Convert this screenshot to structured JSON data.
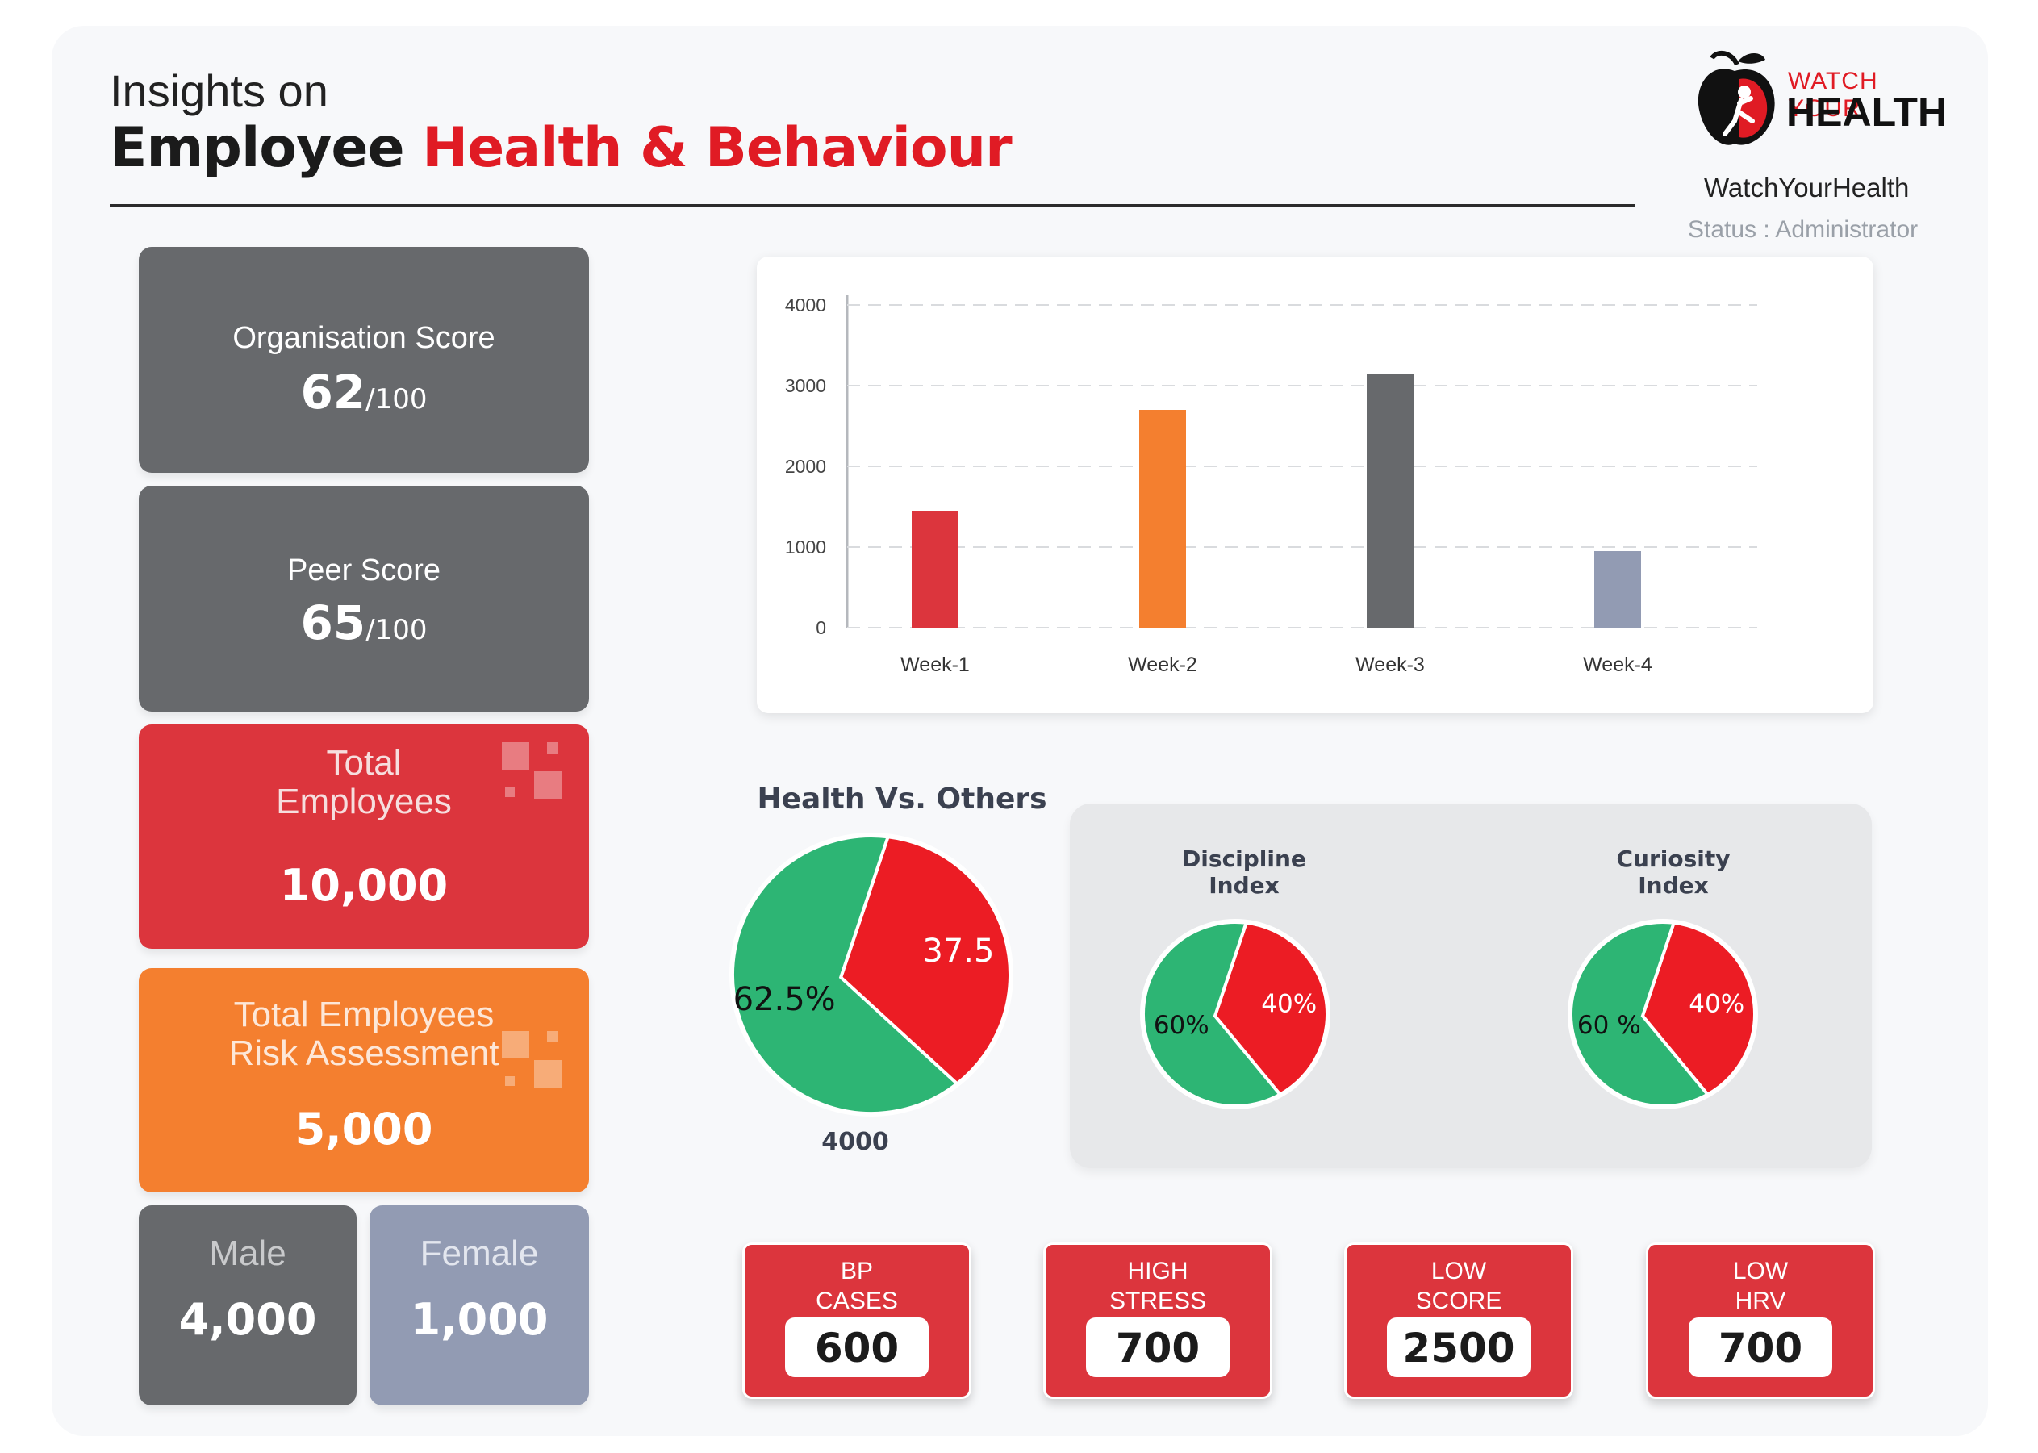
{
  "header": {
    "subtitle": "Insights on",
    "title_main": "Employee",
    "title_accent": "Health & Behaviour",
    "logo_top": "WATCH YOUR",
    "logo_bottom": "HEALTH",
    "brand": "WatchYourHealth",
    "status": "Status : Administrator"
  },
  "left": {
    "org": {
      "label": "Organisation Score",
      "value": "62",
      "suffix": "/100"
    },
    "peer": {
      "label": "Peer Score",
      "value": "65",
      "suffix": "/100"
    },
    "total": {
      "label_1": "Total",
      "label_2": "Employees",
      "value": "10,000"
    },
    "risk": {
      "label_1": "Total Employees",
      "label_2": "Risk Assessment",
      "value": "5,000"
    },
    "male": {
      "label": "Male",
      "value": "4,000"
    },
    "female": {
      "label": "Female",
      "value": "1,000"
    }
  },
  "colors": {
    "red": "#dc353d",
    "orange": "#f47f2f",
    "grey": "#67696c",
    "slate": "#929bb3",
    "green": "#2db574",
    "pie_red": "#ec1c24"
  },
  "chart_data": [
    {
      "type": "bar",
      "categories": [
        "Week-1",
        "Week-2",
        "Week-3",
        "Week-4"
      ],
      "values": [
        1450,
        2700,
        3150,
        950
      ],
      "colors": [
        "#dc353d",
        "#f47f2f",
        "#67696c",
        "#929bb3"
      ],
      "yticks": [
        "0",
        "1000",
        "2000",
        "3000",
        "4000"
      ],
      "ylim": [
        0,
        4000
      ],
      "grid": true
    },
    {
      "type": "pie",
      "title": "Health Vs. Others",
      "footer": "4000",
      "slices": [
        {
          "label": "62.5%",
          "value": 62.5,
          "color": "#2db574"
        },
        {
          "label": "37.5",
          "value": 37.5,
          "color": "#ec1c24"
        }
      ]
    },
    {
      "type": "pie",
      "title_1": "Discipline",
      "title_2": "Index",
      "slices": [
        {
          "label": "60%",
          "value": 60,
          "color": "#2db574"
        },
        {
          "label": "40%",
          "value": 40,
          "color": "#ec1c24"
        }
      ]
    },
    {
      "type": "pie",
      "title_1": "Curiosity",
      "title_2": "Index",
      "slices": [
        {
          "label": "60 %",
          "value": 60,
          "color": "#2db574"
        },
        {
          "label": "40%",
          "value": 40,
          "color": "#ec1c24"
        }
      ]
    }
  ],
  "metrics": [
    {
      "label_1": "BP",
      "label_2": "CASES",
      "value": "600"
    },
    {
      "label_1": "HIGH",
      "label_2": "STRESS",
      "value": "700"
    },
    {
      "label_1": "LOW",
      "label_2": "SCORE",
      "value": "2500"
    },
    {
      "label_1": "LOW",
      "label_2": "HRV",
      "value": "700"
    }
  ]
}
